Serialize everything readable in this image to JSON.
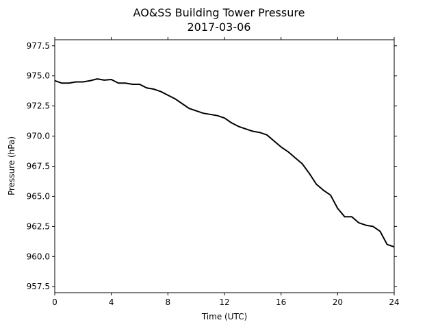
{
  "chart_data": {
    "type": "line",
    "title": "AO&SS Building Tower Pressure",
    "subtitle": "2017-03-06",
    "xlabel": "Time (UTC)",
    "ylabel": "Pressure (hPa)",
    "xlim": [
      0,
      24
    ],
    "ylim": [
      957.0,
      978.0
    ],
    "xticks": [
      0,
      4,
      8,
      12,
      16,
      20,
      24
    ],
    "xtick_labels": [
      "0",
      "4",
      "8",
      "12",
      "16",
      "20",
      "24"
    ],
    "yticks": [
      957.5,
      960.0,
      962.5,
      965.0,
      967.5,
      970.0,
      972.5,
      975.0,
      977.5
    ],
    "ytick_labels": [
      "957.5",
      "960.0",
      "962.5",
      "965.0",
      "967.5",
      "970.0",
      "972.5",
      "975.0",
      "977.5"
    ],
    "grid": false,
    "series": [
      {
        "color": "#000000",
        "x": [
          0,
          0.5,
          1,
          1.5,
          2,
          2.5,
          3,
          3.5,
          4,
          4.5,
          5,
          5.5,
          6,
          6.5,
          7,
          7.5,
          8,
          8.5,
          9,
          9.5,
          10,
          10.5,
          11,
          11.5,
          12,
          12.5,
          13,
          13.5,
          14,
          14.5,
          15,
          15.5,
          16,
          16.5,
          17,
          17.5,
          18,
          18.5,
          19,
          19.5,
          20,
          20.5,
          21,
          21.5,
          22,
          22.5,
          23,
          23.5,
          24
        ],
        "y": [
          974.6,
          974.4,
          974.4,
          974.5,
          974.5,
          974.6,
          974.75,
          974.65,
          974.7,
          974.4,
          974.4,
          974.3,
          974.3,
          974.0,
          973.9,
          973.7,
          973.4,
          973.1,
          972.7,
          972.3,
          972.1,
          971.9,
          971.8,
          971.7,
          971.5,
          971.1,
          970.8,
          970.6,
          970.4,
          970.3,
          970.1,
          969.6,
          969.1,
          968.7,
          968.2,
          967.7,
          966.9,
          966.0,
          965.5,
          965.1,
          964.0,
          963.3,
          963.3,
          962.8,
          962.6,
          962.5,
          962.1,
          961.0,
          960.8
        ]
      }
    ]
  }
}
